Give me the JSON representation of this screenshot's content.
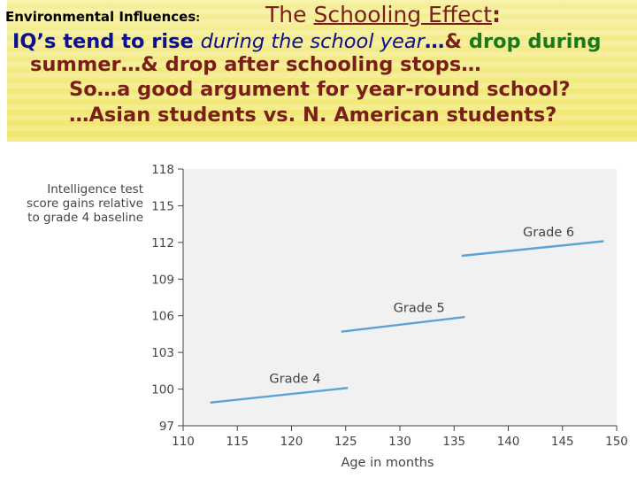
{
  "header": {
    "env_label": "Environmental Influences",
    "env_colon": ":",
    "title_prefix": "The",
    "title_underlined": "Schooling Effect",
    "title_colon": ":",
    "line1_a": "IQ’s tend to rise ",
    "line1_italic": "during the school year",
    "line1_b": "…",
    "line1_amp": "& ",
    "line1_green": "drop during",
    "line2": "summer…& drop after schooling stops…",
    "line3": "So…a good argument for year-round school?",
    "line4": "…Asian students vs. N. American students?"
  },
  "colors": {
    "accent_dark_red": "#7a1e18",
    "text_navy": "#0d0f8c",
    "text_green": "#1a7a1a",
    "series_line": "#5ba3d6",
    "plot_background": "#f1f1f1",
    "banner_yellow": "#f1e66b"
  },
  "chart_data": {
    "type": "line",
    "ylabel_lines": [
      "Intelligence test",
      "score gains relative",
      "to grade 4 baseline"
    ],
    "xlabel": "Age in months",
    "xlim": [
      110,
      150
    ],
    "ylim": [
      97,
      118
    ],
    "x_ticks": [
      "110",
      "115",
      "120",
      "125",
      "130",
      "135",
      "140",
      "145",
      "150"
    ],
    "y_ticks": [
      "97",
      "100",
      "103",
      "106",
      "109",
      "112",
      "115",
      "118"
    ],
    "grid": false,
    "series": [
      {
        "name": "Grade 4",
        "x": [
          112.5,
          125.2
        ],
        "y": [
          98.9,
          100.1
        ]
      },
      {
        "name": "Grade 5",
        "x": [
          124.6,
          136.0
        ],
        "y": [
          104.7,
          105.9
        ]
      },
      {
        "name": "Grade 6",
        "x": [
          135.7,
          148.8
        ],
        "y": [
          110.9,
          112.1
        ]
      }
    ]
  }
}
